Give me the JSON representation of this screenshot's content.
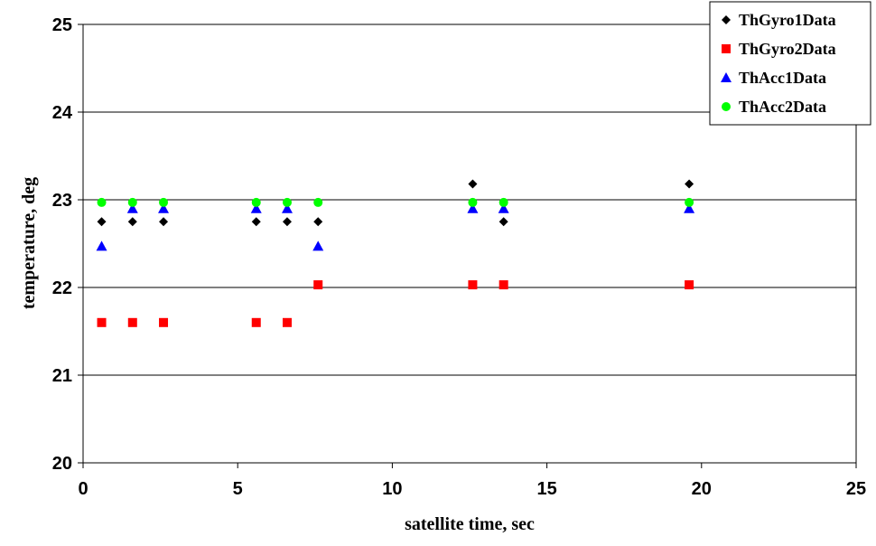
{
  "chart_data": {
    "type": "scatter",
    "title": "",
    "xlabel": "satellite time, sec",
    "ylabel": "temperature, deg",
    "xlim": [
      0,
      25
    ],
    "ylim": [
      20,
      25
    ],
    "xticks": [
      0,
      5,
      10,
      15,
      20,
      25
    ],
    "yticks": [
      20,
      21,
      22,
      23,
      24,
      25
    ],
    "grid": "horizontal",
    "legend": "top-right",
    "series": [
      {
        "name": "ThGyro1Data",
        "marker": "diamond",
        "color": "#000000",
        "x": [
          0.6,
          1.6,
          2.6,
          5.6,
          6.6,
          7.6,
          12.6,
          13.6,
          19.6
        ],
        "y": [
          22.75,
          22.75,
          22.75,
          22.75,
          22.75,
          22.75,
          23.18,
          22.75,
          23.18
        ]
      },
      {
        "name": "ThGyro2Data",
        "marker": "square",
        "color": "#ff0000",
        "x": [
          0.6,
          1.6,
          2.6,
          5.6,
          6.6,
          7.6,
          12.6,
          13.6,
          19.6
        ],
        "y": [
          21.6,
          21.6,
          21.6,
          21.6,
          21.6,
          22.03,
          22.03,
          22.03,
          22.03
        ]
      },
      {
        "name": "ThAcc1Data",
        "marker": "triangle",
        "color": "#0000ff",
        "x": [
          0.6,
          1.6,
          2.6,
          5.6,
          6.6,
          7.6,
          12.6,
          13.6,
          19.6
        ],
        "y": [
          22.47,
          22.9,
          22.9,
          22.9,
          22.9,
          22.47,
          22.9,
          22.9,
          22.9
        ]
      },
      {
        "name": "ThAcc2Data",
        "marker": "circle",
        "color": "#00ff00",
        "x": [
          0.6,
          1.6,
          2.6,
          5.6,
          6.6,
          7.6,
          12.6,
          13.6,
          19.6
        ],
        "y": [
          22.97,
          22.97,
          22.97,
          22.97,
          22.97,
          22.97,
          22.97,
          22.97,
          22.97
        ]
      }
    ]
  }
}
